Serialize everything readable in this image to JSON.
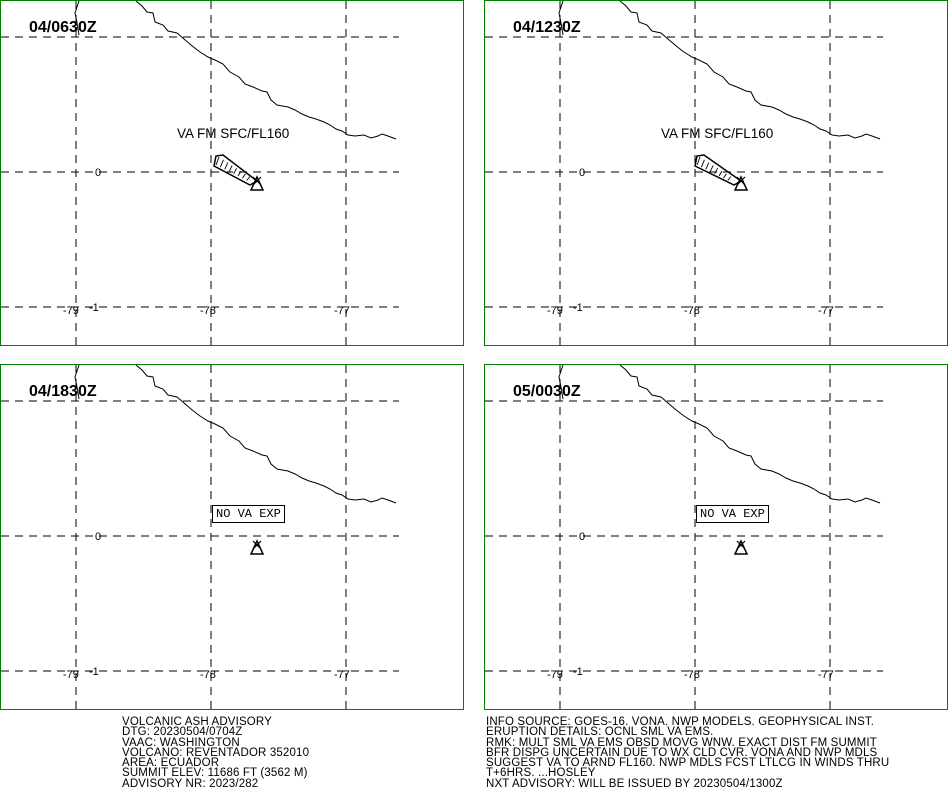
{
  "panels": [
    {
      "title": "04/0630Z",
      "annotation": "VA FM SFC/FL160",
      "plume": true,
      "no_va": ""
    },
    {
      "title": "04/1230Z",
      "annotation": "VA FM SFC/FL160",
      "plume": true,
      "no_va": ""
    },
    {
      "title": "04/1830Z",
      "annotation": "",
      "plume": false,
      "no_va": "NO VA EXP"
    },
    {
      "title": "05/0030Z",
      "annotation": "",
      "plume": false,
      "no_va": "NO VA EXP"
    }
  ],
  "axes": {
    "lon_labels": [
      "-79",
      "-78",
      "-77"
    ],
    "lat_labels": [
      "0",
      "-1"
    ]
  },
  "colors": {
    "border": "#008000",
    "lines": "#000000"
  },
  "advisory_left": [
    "VOLCANIC ASH ADVISORY",
    "DTG: 20230504/0704Z",
    "VAAC: WASHINGTON",
    "VOLCANO: REVENTADOR 352010",
    "AREA: ECUADOR",
    "SUMMIT ELEV: 11686 FT (3562 M)",
    "ADVISORY NR: 2023/282"
  ],
  "advisory_right": [
    "INFO SOURCE: GOES-16. VONA. NWP MODELS. GEOPHYSICAL INST.",
    "ERUPTION DETAILS: OCNL SML VA EMS.",
    "RMK: MULT SML VA EMS OBSD MOVG WNW. EXACT DIST FM SUMMIT",
    "BFR DISPG UNCERTAIN DUE TO WX CLD CVR. VONA AND NWP MDLS",
    "SUGGEST VA TO ARND FL160. NWP MDLS FCST LTLCG IN WINDS THRU",
    "T+6HRS. ...HOSLEY",
    "NXT ADVISORY: WILL BE ISSUED BY 20230504/1300Z"
  ]
}
